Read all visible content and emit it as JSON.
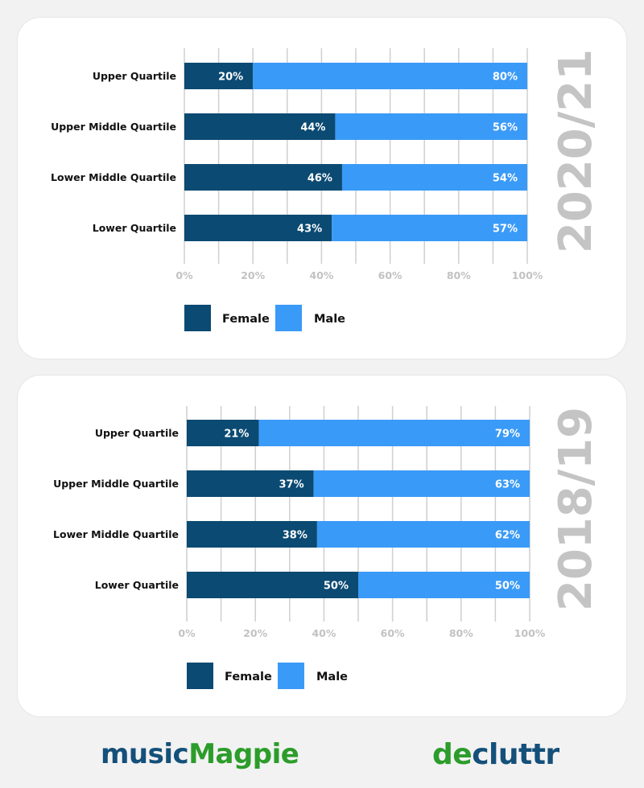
{
  "colors": {
    "female": "#0b4a72",
    "male": "#3a9af7",
    "grid": "#cfcfcf",
    "tick": "#c2c2c2",
    "year": "#c4c4c4"
  },
  "chart_data": [
    {
      "type": "bar",
      "orientation": "horizontal-stacked",
      "year_label": "2020/21",
      "categories": [
        "Upper Quartile",
        "Upper Middle Quartile",
        "Lower Middle Quartile",
        "Lower Quartile"
      ],
      "series": [
        {
          "name": "Female",
          "values": [
            20,
            44,
            46,
            43
          ],
          "labels": [
            "20%",
            "44%",
            "46%",
            "43%"
          ]
        },
        {
          "name": "Male",
          "values": [
            80,
            56,
            54,
            57
          ],
          "labels": [
            "80%",
            "56%",
            "54%",
            "57%"
          ]
        }
      ],
      "xlim": [
        0,
        100
      ],
      "xticks": [
        "0%",
        "20%",
        "40%",
        "60%",
        "80%",
        "100%"
      ],
      "legend": [
        "Female",
        "Male"
      ],
      "legend_position": "bottom-left",
      "grid": true
    },
    {
      "type": "bar",
      "orientation": "horizontal-stacked",
      "year_label": "2018/19",
      "categories": [
        "Upper Quartile",
        "Upper Middle Quartile",
        "Lower Middle Quartile",
        "Lower Quartile"
      ],
      "series": [
        {
          "name": "Female",
          "values": [
            21,
            37,
            38,
            50
          ],
          "labels": [
            "21%",
            "37%",
            "38%",
            "50%"
          ]
        },
        {
          "name": "Male",
          "values": [
            79,
            63,
            62,
            50
          ],
          "labels": [
            "79%",
            "63%",
            "62%",
            "50%"
          ]
        }
      ],
      "xlim": [
        0,
        100
      ],
      "xticks": [
        "0%",
        "20%",
        "40%",
        "60%",
        "80%",
        "100%"
      ],
      "legend": [
        "Female",
        "Male"
      ],
      "legend_position": "bottom-left",
      "grid": true
    }
  ],
  "footer": {
    "logo_left": {
      "part1": "music",
      "part2": "Magpie"
    },
    "logo_right": {
      "part1": "de",
      "part2": "cluttr"
    }
  }
}
